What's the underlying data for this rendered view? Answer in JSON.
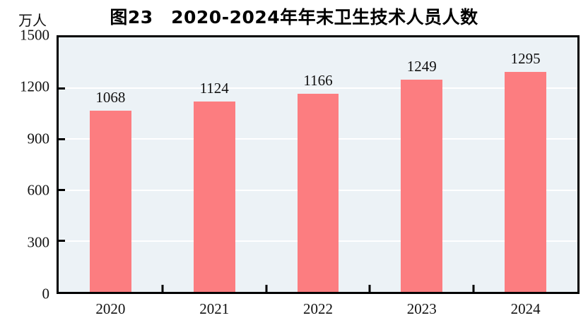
{
  "chart_data": {
    "type": "bar",
    "title": "图23　2020-2024年年末卫生技术人员人数",
    "unit_label": "万人",
    "categories": [
      "2020",
      "2021",
      "2022",
      "2023",
      "2024"
    ],
    "values": [
      1068,
      1124,
      1166,
      1249,
      1295
    ],
    "xlabel": "",
    "ylabel": "万人",
    "ylim": [
      0,
      1500
    ],
    "y_ticks": [
      0,
      300,
      600,
      900,
      1200,
      1500
    ],
    "grid": true,
    "legend": false,
    "colors": {
      "bar": "#fc7d80",
      "plot_bg": "#ecf2f6",
      "grid": "#ffffff",
      "axis": "#000000",
      "text": "#111111"
    }
  }
}
